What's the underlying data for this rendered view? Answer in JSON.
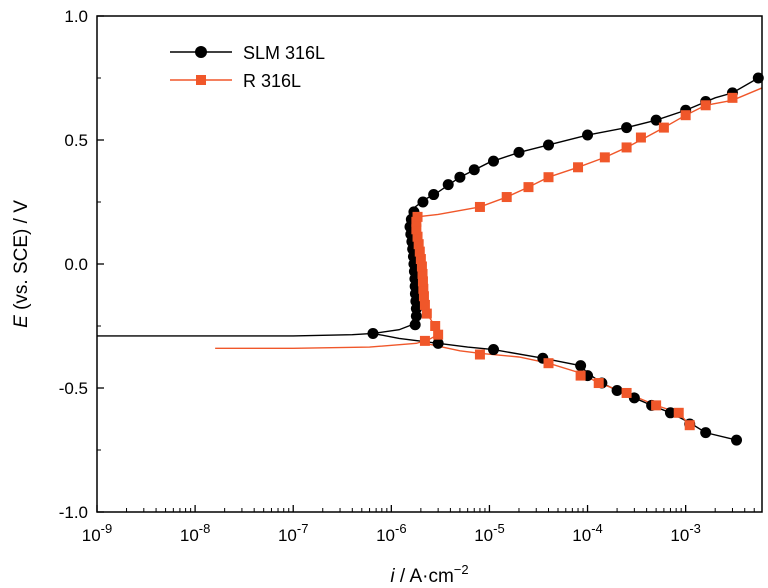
{
  "chart_data": {
    "type": "line",
    "title": "",
    "xlabel": "i / A·cm−2",
    "xlabel_var": "i",
    "xlabel_unit": "A·cm",
    "xlabel_exp": "−2",
    "ylabel": "E (vs. SCE) / V",
    "ylabel_var": "E",
    "ylabel_rest": "(vs. SCE) / V",
    "x_scale": "log",
    "xlim": [
      1e-09,
      0.006
    ],
    "ylim": [
      -1.0,
      1.0
    ],
    "x_ticks": [
      {
        "value": 1e-09,
        "base": "10",
        "exp": "-9"
      },
      {
        "value": 1e-08,
        "base": "10",
        "exp": "-8"
      },
      {
        "value": 1e-07,
        "base": "10",
        "exp": "-7"
      },
      {
        "value": 1e-06,
        "base": "10",
        "exp": "-6"
      },
      {
        "value": 1e-05,
        "base": "10",
        "exp": "-5"
      },
      {
        "value": 0.0001,
        "base": "10",
        "exp": "-4"
      },
      {
        "value": 0.001,
        "base": "10",
        "exp": "-3"
      }
    ],
    "y_ticks": [
      {
        "value": 1.0,
        "label": "1.0"
      },
      {
        "value": 0.5,
        "label": "0.5"
      },
      {
        "value": 0.0,
        "label": "0.0"
      },
      {
        "value": -0.5,
        "label": "-0.5"
      },
      {
        "value": -1.0,
        "label": "-1.0"
      }
    ],
    "legend_position": "top-left",
    "grid": false,
    "series": [
      {
        "name": "SLM 316L",
        "color": "#000000",
        "marker": "circle",
        "curve": [
          [
            1e-09,
            -0.29
          ],
          [
            1e-07,
            -0.29
          ],
          [
            4e-07,
            -0.285
          ],
          [
            6.5e-07,
            -0.28
          ],
          [
            1.2e-06,
            -0.265
          ],
          [
            1.75e-06,
            -0.24
          ],
          [
            1.8e-06,
            -0.18
          ],
          [
            1.75e-06,
            -0.1
          ],
          [
            1.7e-06,
            0.0
          ],
          [
            1.6e-06,
            0.1
          ],
          [
            1.55e-06,
            0.16
          ],
          [
            1.6e-06,
            0.2
          ],
          [
            1.75e-06,
            0.23
          ],
          [
            2.2e-06,
            0.26
          ],
          [
            3e-06,
            0.29
          ],
          [
            5e-06,
            0.35
          ],
          [
            1e-05,
            0.41
          ],
          [
            2e-05,
            0.45
          ],
          [
            4e-05,
            0.48
          ],
          [
            0.0001,
            0.52
          ],
          [
            0.00025,
            0.55
          ],
          [
            0.0005,
            0.58
          ],
          [
            0.001,
            0.62
          ],
          [
            0.002,
            0.67
          ],
          [
            0.003,
            0.69
          ],
          [
            0.0055,
            0.75
          ]
        ],
        "cathodic_curve": [
          [
            6.5e-07,
            -0.28
          ],
          [
            1.2e-06,
            -0.3
          ],
          [
            3e-06,
            -0.32
          ],
          [
            6e-06,
            -0.335
          ],
          [
            1.1e-05,
            -0.345
          ],
          [
            3.5e-05,
            -0.38
          ],
          [
            8.5e-05,
            -0.41
          ],
          [
            0.0001,
            -0.44
          ],
          [
            0.00014,
            -0.48
          ],
          [
            0.0002,
            -0.51
          ],
          [
            0.0003,
            -0.54
          ],
          [
            0.00045,
            -0.57
          ],
          [
            0.0007,
            -0.6
          ],
          [
            0.0011,
            -0.64
          ],
          [
            0.0016,
            -0.68
          ],
          [
            0.0033,
            -0.71
          ]
        ],
        "points": [
          [
            6.5e-07,
            -0.28
          ],
          [
            1.75e-06,
            -0.245
          ],
          [
            1.8e-06,
            -0.21
          ],
          [
            1.8e-06,
            -0.18
          ],
          [
            1.78e-06,
            -0.15
          ],
          [
            1.76e-06,
            -0.12
          ],
          [
            1.75e-06,
            -0.09
          ],
          [
            1.74e-06,
            -0.06
          ],
          [
            1.72e-06,
            -0.03
          ],
          [
            1.7e-06,
            0.0
          ],
          [
            1.68e-06,
            0.03
          ],
          [
            1.65e-06,
            0.06
          ],
          [
            1.62e-06,
            0.09
          ],
          [
            1.58e-06,
            0.12
          ],
          [
            1.55e-06,
            0.15
          ],
          [
            1.6e-06,
            0.18
          ],
          [
            1.7e-06,
            0.21
          ],
          [
            2.1e-06,
            0.25
          ],
          [
            2.7e-06,
            0.28
          ],
          [
            3.8e-06,
            0.32
          ],
          [
            5e-06,
            0.35
          ],
          [
            7e-06,
            0.38
          ],
          [
            1.1e-05,
            0.415
          ],
          [
            2e-05,
            0.45
          ],
          [
            4e-05,
            0.48
          ],
          [
            0.0001,
            0.52
          ],
          [
            0.00025,
            0.55
          ],
          [
            0.0005,
            0.58
          ],
          [
            0.001,
            0.62
          ],
          [
            0.0016,
            0.655
          ],
          [
            0.003,
            0.69
          ],
          [
            0.0055,
            0.75
          ],
          [
            3e-06,
            -0.32
          ],
          [
            1.1e-05,
            -0.345
          ],
          [
            3.5e-05,
            -0.38
          ],
          [
            8.5e-05,
            -0.41
          ],
          [
            0.0001,
            -0.45
          ],
          [
            0.00014,
            -0.48
          ],
          [
            0.0002,
            -0.51
          ],
          [
            0.0003,
            -0.54
          ],
          [
            0.00045,
            -0.57
          ],
          [
            0.0007,
            -0.6
          ],
          [
            0.0011,
            -0.645
          ],
          [
            0.0016,
            -0.68
          ],
          [
            0.0033,
            -0.71
          ]
        ]
      },
      {
        "name": "R 316L",
        "color": "#f0572a",
        "marker": "square",
        "curve": [
          [
            1.6e-08,
            -0.34
          ],
          [
            1e-07,
            -0.34
          ],
          [
            6e-07,
            -0.335
          ],
          [
            1.8e-06,
            -0.32
          ],
          [
            2.4e-06,
            -0.305
          ],
          [
            3e-06,
            -0.285
          ],
          [
            2.9e-06,
            -0.26
          ],
          [
            2.3e-06,
            -0.2
          ],
          [
            2.15e-06,
            -0.1
          ],
          [
            2.05e-06,
            0.0
          ],
          [
            1.95e-06,
            0.05
          ],
          [
            1.8e-06,
            0.1
          ],
          [
            1.75e-06,
            0.15
          ],
          [
            1.8e-06,
            0.19
          ],
          [
            3e-06,
            0.2
          ],
          [
            8e-06,
            0.23
          ],
          [
            1.5e-05,
            0.27
          ],
          [
            2.5e-05,
            0.31
          ],
          [
            4e-05,
            0.35
          ],
          [
            8e-05,
            0.39
          ],
          [
            0.00015,
            0.43
          ],
          [
            0.00025,
            0.47
          ],
          [
            0.00035,
            0.5
          ],
          [
            0.0006,
            0.55
          ],
          [
            0.001,
            0.6
          ],
          [
            0.0016,
            0.64
          ],
          [
            0.003,
            0.66
          ],
          [
            0.006,
            0.71
          ]
        ],
        "cathodic_curve": [
          [
            2.2e-06,
            -0.32
          ],
          [
            5e-06,
            -0.35
          ],
          [
            8e-06,
            -0.36
          ],
          [
            2e-05,
            -0.375
          ],
          [
            4e-05,
            -0.4
          ],
          [
            8.5e-05,
            -0.44
          ],
          [
            0.00013,
            -0.48
          ],
          [
            0.00025,
            -0.52
          ],
          [
            0.0005,
            -0.57
          ],
          [
            0.00085,
            -0.6
          ],
          [
            0.0011,
            -0.65
          ]
        ],
        "points": [
          [
            2.2e-06,
            -0.31
          ],
          [
            3e-06,
            -0.285
          ],
          [
            2.8e-06,
            -0.25
          ],
          [
            2.3e-06,
            -0.2
          ],
          [
            2.2e-06,
            -0.165
          ],
          [
            2.15e-06,
            -0.13
          ],
          [
            2.12e-06,
            -0.1
          ],
          [
            2.1e-06,
            -0.07
          ],
          [
            2.08e-06,
            -0.04
          ],
          [
            2.05e-06,
            -0.01
          ],
          [
            2e-06,
            0.02
          ],
          [
            1.95e-06,
            0.05
          ],
          [
            1.9e-06,
            0.08
          ],
          [
            1.85e-06,
            0.11
          ],
          [
            1.8e-06,
            0.14
          ],
          [
            1.8e-06,
            0.17
          ],
          [
            1.85e-06,
            0.19
          ],
          [
            8e-06,
            0.23
          ],
          [
            1.5e-05,
            0.27
          ],
          [
            2.5e-05,
            0.31
          ],
          [
            4e-05,
            0.35
          ],
          [
            8e-05,
            0.39
          ],
          [
            0.00015,
            0.43
          ],
          [
            0.00025,
            0.47
          ],
          [
            0.00035,
            0.51
          ],
          [
            0.0006,
            0.55
          ],
          [
            0.001,
            0.6
          ],
          [
            0.0016,
            0.64
          ],
          [
            0.003,
            0.67
          ],
          [
            8e-06,
            -0.365
          ],
          [
            4e-05,
            -0.4
          ],
          [
            8.5e-05,
            -0.45
          ],
          [
            0.00013,
            -0.48
          ],
          [
            0.00025,
            -0.52
          ],
          [
            0.0005,
            -0.57
          ],
          [
            0.00085,
            -0.6
          ],
          [
            0.0011,
            -0.65
          ]
        ]
      }
    ]
  }
}
